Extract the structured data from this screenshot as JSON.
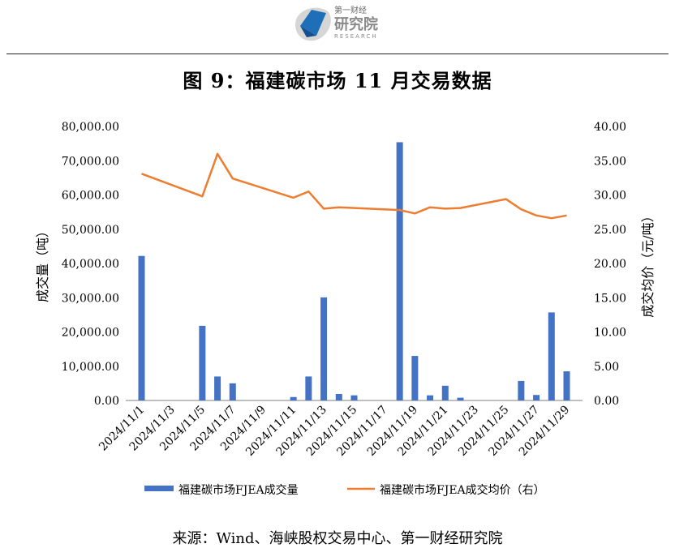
{
  "header": {
    "logo_line1": "第一财经",
    "logo_line2": "研究院",
    "logo_line3": "RESEARCH",
    "colors": {
      "logo_blue": "#1f6fb8",
      "logo_gray": "#8a8a8a"
    }
  },
  "title": "图 9：福建碳市场 11 月交易数据",
  "source": "来源：Wind、海峡股权交易中心、第一财经研究院",
  "chart_data": {
    "type": "bar",
    "categories": [
      "2024/11/1",
      "2024/11/4",
      "2024/11/5",
      "2024/11/6",
      "2024/11/7",
      "2024/11/8",
      "2024/11/11",
      "2024/11/12",
      "2024/11/13",
      "2024/11/14",
      "2024/11/15",
      "2024/11/18",
      "2024/11/19",
      "2024/11/20",
      "2024/11/21",
      "2024/11/22",
      "2024/11/25",
      "2024/11/26",
      "2024/11/27",
      "2024/11/28",
      "2024/11/29"
    ],
    "x_dates": [
      "2024-11-01",
      "2024-11-04",
      "2024-11-05",
      "2024-11-06",
      "2024-11-07",
      "2024-11-08",
      "2024-11-11",
      "2024-11-12",
      "2024-11-13",
      "2024-11-14",
      "2024-11-15",
      "2024-11-18",
      "2024-11-19",
      "2024-11-20",
      "2024-11-21",
      "2024-11-22",
      "2024-11-25",
      "2024-11-26",
      "2024-11-27",
      "2024-11-28",
      "2024-11-29"
    ],
    "x_tick_labels": [
      "2024/11/1",
      "2024/11/3",
      "2024/11/5",
      "2024/11/7",
      "2024/11/9",
      "2024/11/11",
      "2024/11/13",
      "2024/11/15",
      "2024/11/17",
      "2024/11/19",
      "2024/11/21",
      "2024/11/23",
      "2024/11/25",
      "2024/11/27",
      "2024/11/29"
    ],
    "x_tick_dates": [
      "2024-11-01",
      "2024-11-03",
      "2024-11-05",
      "2024-11-07",
      "2024-11-09",
      "2024-11-11",
      "2024-11-13",
      "2024-11-15",
      "2024-11-17",
      "2024-11-19",
      "2024-11-21",
      "2024-11-23",
      "2024-11-25",
      "2024-11-27",
      "2024-11-29"
    ],
    "series": [
      {
        "name": "福建碳市场FJEA成交量",
        "axis": "left",
        "kind": "bar",
        "color": "#4472c4",
        "values": [
          42200,
          0,
          21800,
          7000,
          5000,
          0,
          1000,
          7000,
          30100,
          1900,
          1500,
          75400,
          13000,
          1500,
          4300,
          800,
          0,
          5700,
          1600,
          25700,
          8500
        ]
      },
      {
        "name": "福建碳市场FJEA成交均价（右）",
        "axis": "right",
        "kind": "line",
        "color": "#ed7d31",
        "values": [
          33.1,
          null,
          29.8,
          36.0,
          32.4,
          null,
          29.6,
          30.5,
          28.0,
          28.2,
          null,
          27.8,
          27.3,
          28.2,
          28.0,
          28.1,
          29.4,
          27.9,
          27.0,
          26.6,
          27.0
        ]
      }
    ],
    "ylabel": "成交量（吨）",
    "y2label": "成交均价（元/吨）",
    "ylim": [
      0,
      80000
    ],
    "y2lim": [
      0,
      40
    ],
    "y_ticks": [
      "0.00",
      "10,000.00",
      "20,000.00",
      "30,000.00",
      "40,000.00",
      "50,000.00",
      "60,000.00",
      "70,000.00",
      "80,000.00"
    ],
    "y2_ticks": [
      "0.00",
      "5.00",
      "10.00",
      "15.00",
      "20.00",
      "25.00",
      "30.00",
      "35.00",
      "40.00"
    ],
    "grid": false,
    "legend_position": "bottom"
  }
}
